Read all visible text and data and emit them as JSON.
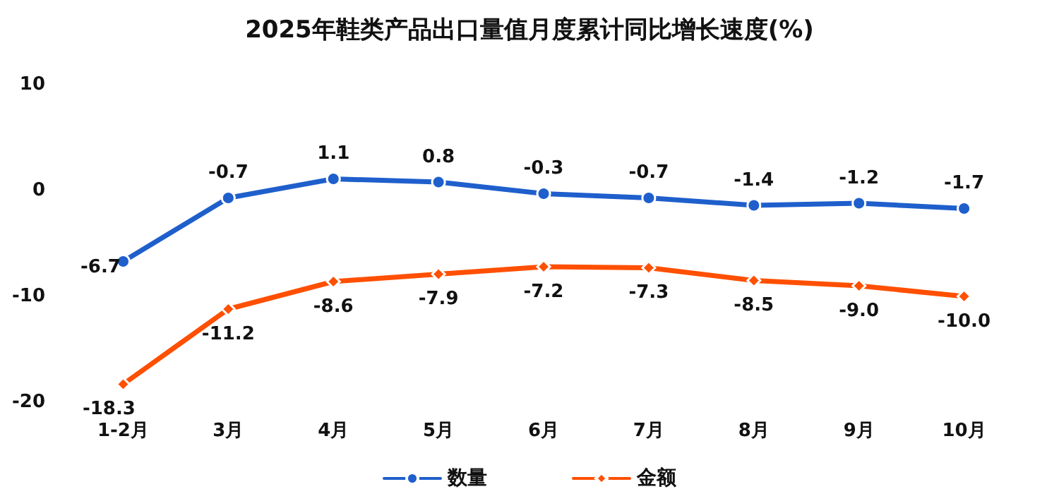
{
  "chart_data": {
    "type": "line",
    "title": "2025年鞋类产品出口量值月度累计同比增长速度(%)",
    "categories": [
      "1-2月",
      "3月",
      "4月",
      "5月",
      "6月",
      "7月",
      "8月",
      "9月",
      "10月"
    ],
    "series": [
      {
        "name": "数量",
        "color": "#1f5fcc",
        "marker": "circle",
        "values": [
          -6.7,
          -0.7,
          1.1,
          0.8,
          -0.3,
          -0.7,
          -1.4,
          -1.2,
          -1.7
        ],
        "value_labels": [
          "-6.7",
          "-0.7",
          "1.1",
          "0.8",
          "-0.3",
          "-0.7",
          "-1.4",
          "-1.2",
          "-1.7"
        ]
      },
      {
        "name": "金额",
        "color": "#ff4f00",
        "marker": "diamond",
        "values": [
          -18.3,
          -11.2,
          -8.6,
          -7.9,
          -7.2,
          -7.3,
          -8.5,
          -9.0,
          -10.0
        ],
        "value_labels": [
          "-18.3",
          "-11.2",
          "-8.6",
          "-7.9",
          "-7.2",
          "-7.3",
          "-8.5",
          "-9.0",
          "-10.0"
        ]
      }
    ],
    "ylim": [
      -20,
      10
    ],
    "yticks": [
      -20,
      -10,
      0,
      10
    ],
    "grid": false,
    "legend": "bottom",
    "line_style": "solid"
  }
}
